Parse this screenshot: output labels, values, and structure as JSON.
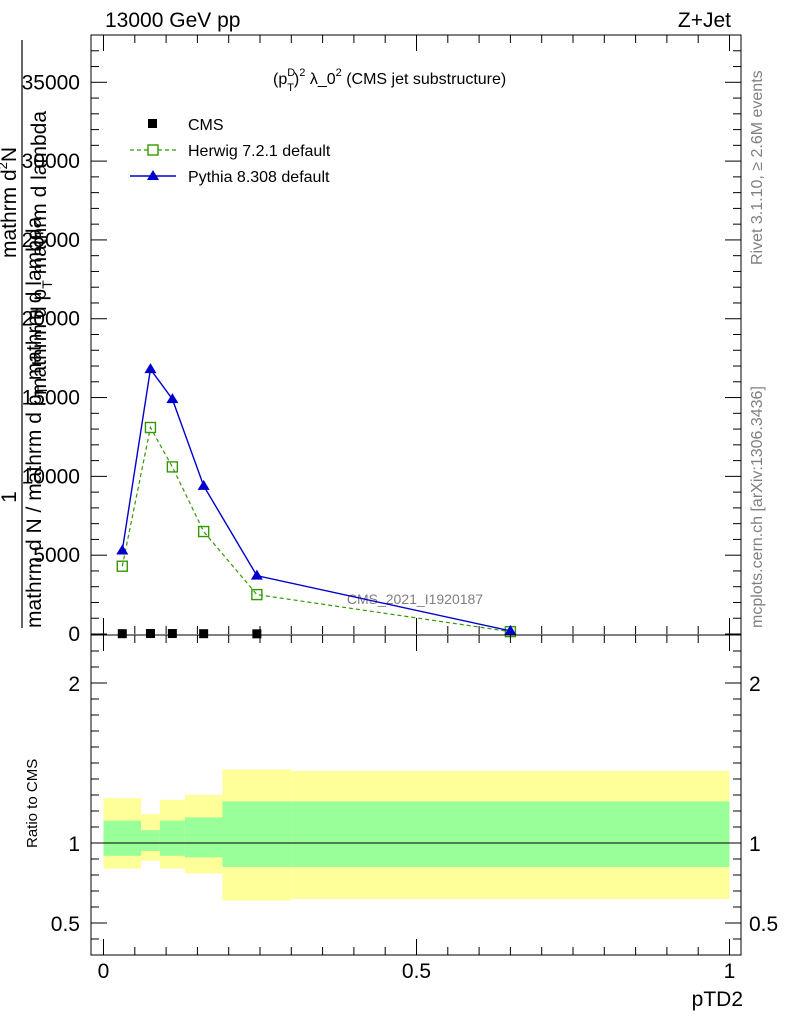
{
  "header": {
    "left": "13000 GeV pp",
    "right": "Z+Jet"
  },
  "side_text": {
    "rivet": "Rivet 3.1.10, ≥ 2.6M events",
    "mcplots": "mcplots.cern.ch [arXiv:1306.3436]"
  },
  "chart_data": [
    {
      "type": "line",
      "title_parts": {
        "p": "(p",
        "sup_d": "D",
        "sub_t": "T",
        "close": ")",
        "sup2": "2",
        "lambda": " λ_0",
        "sup2b": "2",
        "rest": " (CMS jet substructure)"
      },
      "watermark": "CMS_2021_I1920187",
      "ylabel": {
        "frac1": "1",
        "line1": "mathrm d N / mathrm d p",
        "line1_sub": "T",
        "line1_rest": " mathrm d lambda",
        "line2": "mathrm d",
        "line2_sup": "2",
        "line2_mid": "N",
        "line3": "mathrm d p",
        "line3_sub": "T",
        "line3_rest": " mathrm d lambda"
      },
      "xlim": [
        0,
        1
      ],
      "ylim": [
        0,
        38000
      ],
      "yticks": [
        0,
        5000,
        10000,
        15000,
        20000,
        25000,
        30000,
        35000
      ],
      "ytick_labels": [
        "0",
        "5000",
        "10000",
        "15000",
        "20000",
        "25000",
        "30000",
        "35000"
      ],
      "legend": {
        "placement": "top-left"
      },
      "series": [
        {
          "name": "CMS",
          "marker": "square",
          "color": "#000000",
          "x": [
            0.03,
            0.075,
            0.11,
            0.16,
            0.245
          ],
          "y": [
            20,
            30,
            30,
            20,
            10
          ]
        },
        {
          "name": "Herwig 7.2.1 default",
          "marker": "open-square",
          "style": "dashed",
          "color": "#339900",
          "x": [
            0.03,
            0.075,
            0.11,
            0.16,
            0.245,
            0.65
          ],
          "y": [
            4300,
            13100,
            10600,
            6500,
            2500,
            150
          ]
        },
        {
          "name": "Pythia 8.308 default",
          "marker": "triangle",
          "color": "#0000cc",
          "x": [
            0.03,
            0.075,
            0.11,
            0.16,
            0.245,
            0.65
          ],
          "y": [
            5300,
            16800,
            14900,
            9400,
            3700,
            200
          ]
        }
      ]
    },
    {
      "type": "area",
      "ylabel": "Ratio to CMS",
      "xlabel": "pTD2",
      "xlim": [
        0,
        1
      ],
      "ylim": [
        0.3,
        2.3
      ],
      "xticks": [
        0,
        0.5,
        1
      ],
      "xtick_labels": [
        "0",
        "0.5",
        "1"
      ],
      "ytick_labels": [
        "0.5",
        "1",
        "2"
      ],
      "reference": 1,
      "bins": [
        {
          "x0": 0.0,
          "x1": 0.06,
          "yellow": [
            0.84,
            1.28
          ],
          "green": [
            0.92,
            1.14
          ]
        },
        {
          "x0": 0.06,
          "x1": 0.09,
          "yellow": [
            0.89,
            1.18
          ],
          "green": [
            0.95,
            1.08
          ]
        },
        {
          "x0": 0.09,
          "x1": 0.13,
          "yellow": [
            0.84,
            1.27
          ],
          "green": [
            0.92,
            1.14
          ]
        },
        {
          "x0": 0.13,
          "x1": 0.19,
          "yellow": [
            0.81,
            1.3
          ],
          "green": [
            0.91,
            1.16
          ]
        },
        {
          "x0": 0.19,
          "x1": 0.3,
          "yellow": [
            0.64,
            1.46
          ],
          "green": [
            0.85,
            1.26
          ]
        },
        {
          "x0": 0.3,
          "x1": 1.0,
          "yellow": [
            0.65,
            1.45
          ],
          "green": [
            0.85,
            1.26
          ]
        }
      ],
      "colors": {
        "yellow": "#ffff99",
        "green": "#99ff99"
      }
    }
  ]
}
